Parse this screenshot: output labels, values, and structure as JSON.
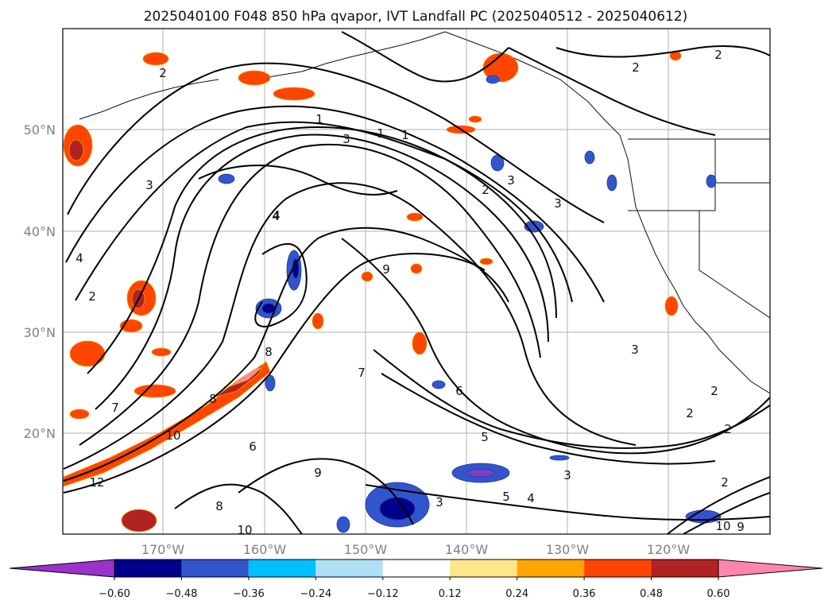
{
  "title": "2025040100 F048 850 hPa qvapor, IVT Landfall PC (2025040512 - 2025040612)",
  "map": {
    "lat_labels": [
      "50°N",
      "40°N",
      "30°N",
      "20°N"
    ],
    "lon_labels": [
      "170°W",
      "160°W",
      "150°W",
      "140°W",
      "130°W",
      "120°W"
    ],
    "gridlines": true
  },
  "colorbar": {
    "ticks": [
      "−0.60",
      "−0.48",
      "−0.36",
      "−0.24",
      "−0.12",
      "0.12",
      "0.24",
      "0.36",
      "0.48",
      "0.60"
    ],
    "colors": [
      "#9933cc",
      "#00008b",
      "#3355cc",
      "#00bfff",
      "#aee0f7",
      "#ffffff",
      "#ffe68a",
      "#ffa500",
      "#ff4500",
      "#b22222",
      "#ff85b0"
    ],
    "extend": "both"
  },
  "contour_labels": [
    "2",
    "3",
    "4",
    "2",
    "1",
    "3",
    "1",
    "2",
    "3",
    "4",
    "5",
    "6",
    "7",
    "8",
    "9",
    "10",
    "12",
    "2",
    "3",
    "4",
    "5",
    "6",
    "7",
    "8",
    "9",
    "10",
    "2",
    "3",
    "2",
    "3",
    "2",
    "10",
    "9",
    "8",
    "3",
    "2",
    "4",
    "2",
    "1"
  ]
}
